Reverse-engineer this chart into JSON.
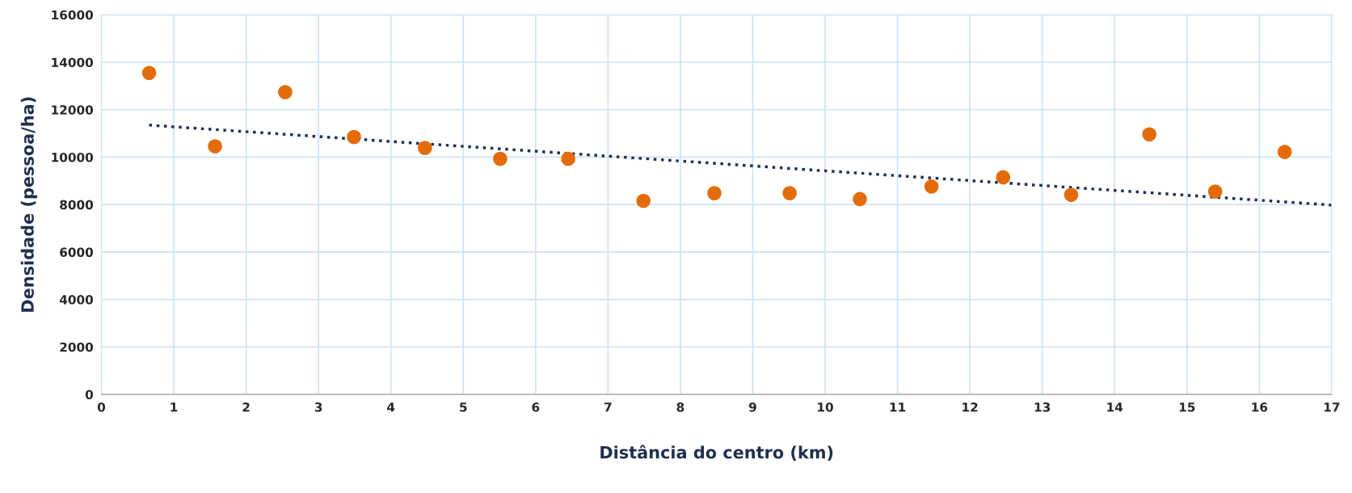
{
  "chart_data": {
    "type": "scatter",
    "xlabel": "Distância do centro (km)",
    "ylabel": "Densidade (pessoa/ha)",
    "xlim": [
      0,
      17
    ],
    "xticks": [
      0,
      1,
      2,
      3,
      4,
      5,
      6,
      7,
      8,
      9,
      10,
      11,
      12,
      13,
      14,
      15,
      16,
      17
    ],
    "ylim": [
      0,
      16000
    ],
    "yticks": [
      0,
      2000,
      4000,
      6000,
      8000,
      10000,
      12000,
      14000,
      16000
    ],
    "grid": true,
    "series": [
      {
        "color": "#e36c0a",
        "marker": "circle",
        "x": [
          0.66,
          1.57,
          2.54,
          3.49,
          4.47,
          5.51,
          6.45,
          7.49,
          8.47,
          9.51,
          10.48,
          11.47,
          12.46,
          13.4,
          14.48,
          15.39,
          16.35
        ],
        "values": [
          13550,
          10460,
          12740,
          10850,
          10390,
          9930,
          9930,
          8160,
          8480,
          8480,
          8230,
          8760,
          9150,
          8410,
          10960,
          8550,
          10220
        ]
      },
      {
        "type": "line",
        "color": "#1f2f4f",
        "marker": "none",
        "line_style": "dotted",
        "x": [
          0.66,
          17
        ],
        "values": [
          11350,
          7980
        ]
      }
    ]
  }
}
